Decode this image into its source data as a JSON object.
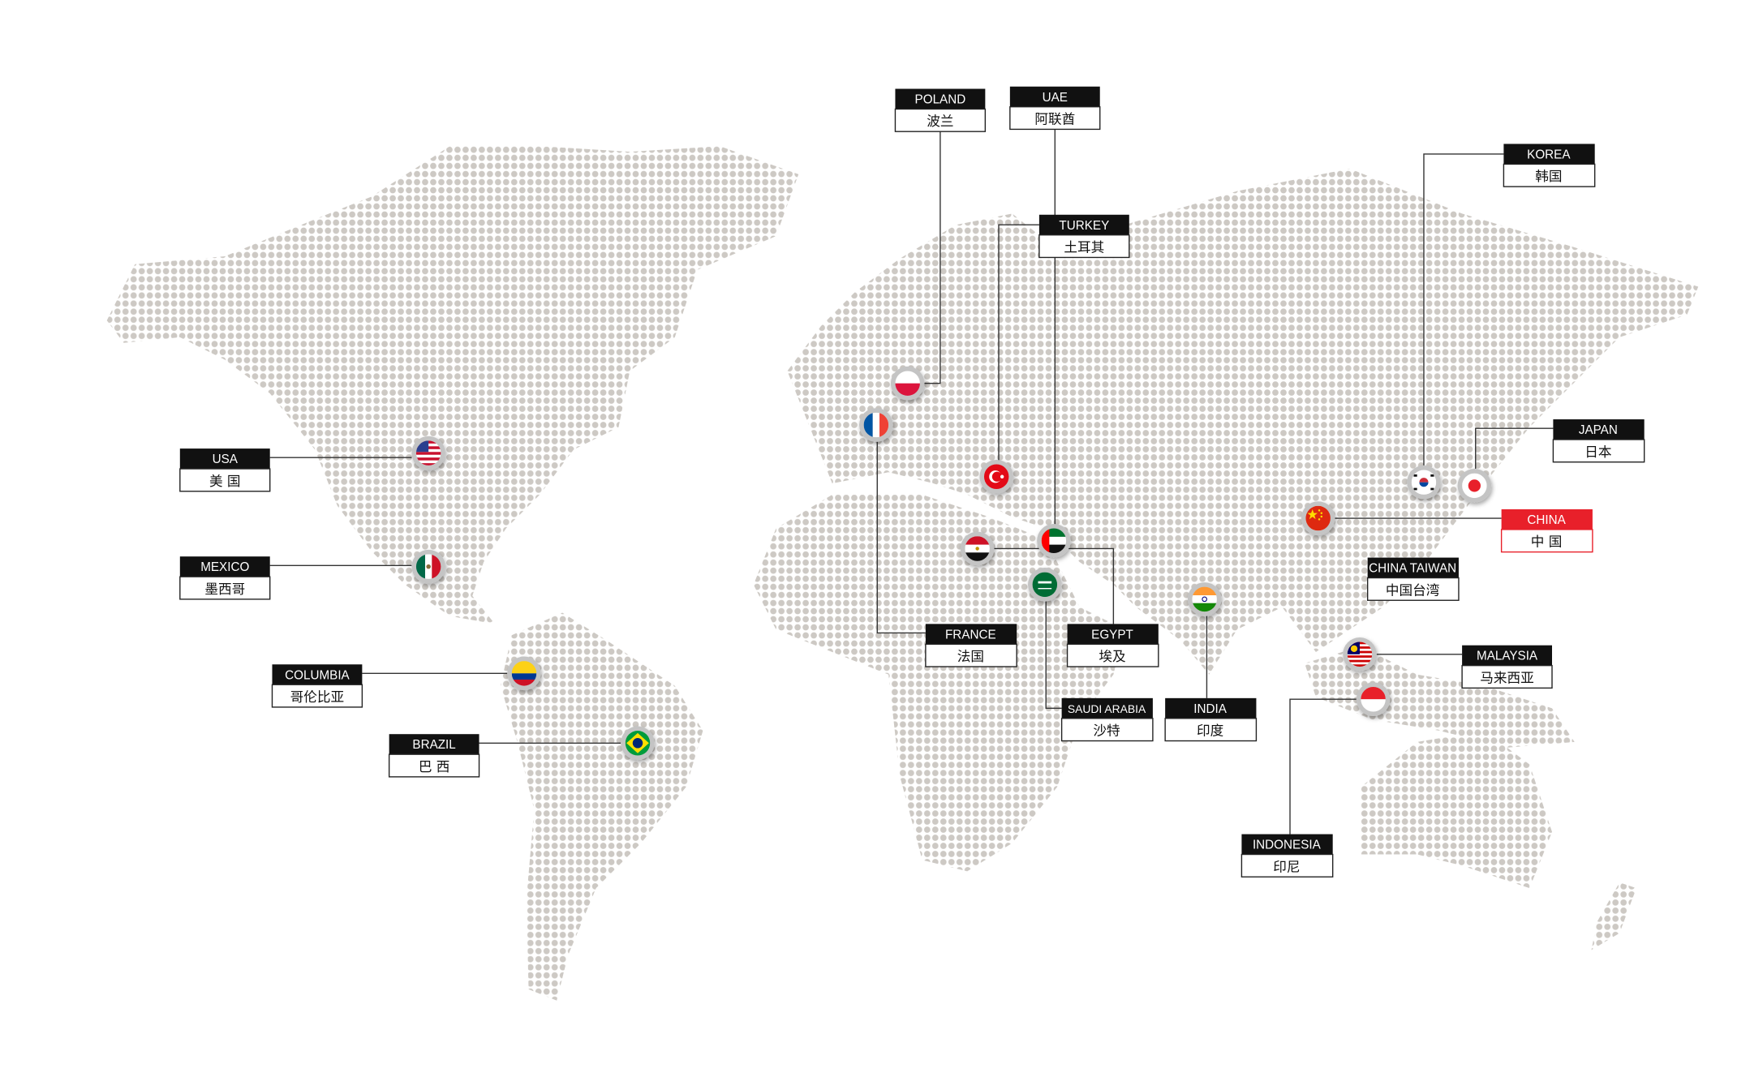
{
  "colors": {
    "dots": "#cdc9c4",
    "label_header": "#111111",
    "highlight": "#e8202a"
  },
  "labels": {
    "poland": {
      "en": "POLAND",
      "zh": "波兰"
    },
    "uae": {
      "en": "UAE",
      "zh": "阿联酋"
    },
    "turkey": {
      "en": "TURKEY",
      "zh": "土耳其"
    },
    "korea": {
      "en": "KOREA",
      "zh": "韩国"
    },
    "japan": {
      "en": "JAPAN",
      "zh": "日本"
    },
    "china": {
      "en": "CHINA",
      "zh": "中 国",
      "highlighted": true
    },
    "china_taiwan": {
      "en": "CHINA TAIWAN",
      "zh": "中国台湾"
    },
    "malaysia": {
      "en": "MALAYSIA",
      "zh": "马来西亚"
    },
    "indonesia": {
      "en": "INDONESIA",
      "zh": "印尼"
    },
    "india": {
      "en": "INDIA",
      "zh": "印度"
    },
    "saudi_arabia": {
      "en": "SAUDI ARABIA",
      "zh": "沙特"
    },
    "egypt": {
      "en": "EGYPT",
      "zh": "埃及"
    },
    "france": {
      "en": "FRANCE",
      "zh": "法国"
    },
    "usa": {
      "en": "USA",
      "zh": "美 国"
    },
    "mexico": {
      "en": "MEXICO",
      "zh": "墨西哥"
    },
    "columbia": {
      "en": "COLUMBIA",
      "zh": "哥伦比亚"
    },
    "brazil": {
      "en": "BRAZIL",
      "zh": "巴 西"
    }
  }
}
